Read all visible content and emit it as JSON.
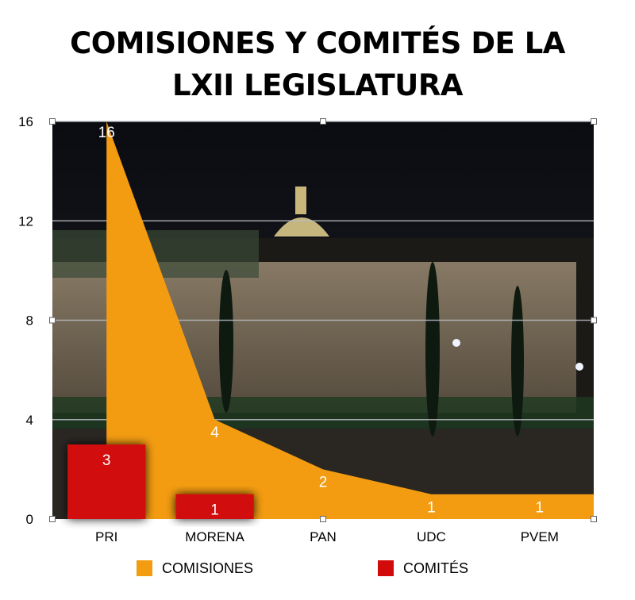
{
  "title_lines": [
    "COMISIONES Y COMITÉS DE LA",
    "LXII LEGISLATURA"
  ],
  "colors": {
    "comisiones": "#f39c11",
    "comites": "#d20a0a"
  },
  "chart_data": {
    "type": "area",
    "title": "COMISIONES Y COMITÉS DE LA LXII LEGISLATURA",
    "categories": [
      "PRI",
      "MORENA",
      "PAN",
      "UDC",
      "PVEM"
    ],
    "series": [
      {
        "name": "COMISIONES",
        "type": "area",
        "values": [
          16,
          4,
          2,
          1,
          1
        ]
      },
      {
        "name": "COMITÉS",
        "type": "bar",
        "values": [
          3,
          1,
          0,
          0,
          0
        ]
      }
    ],
    "ylim": [
      0,
      16
    ],
    "yticks": [
      0,
      4,
      8,
      12,
      16
    ],
    "grid": true,
    "legend": "bottom"
  }
}
